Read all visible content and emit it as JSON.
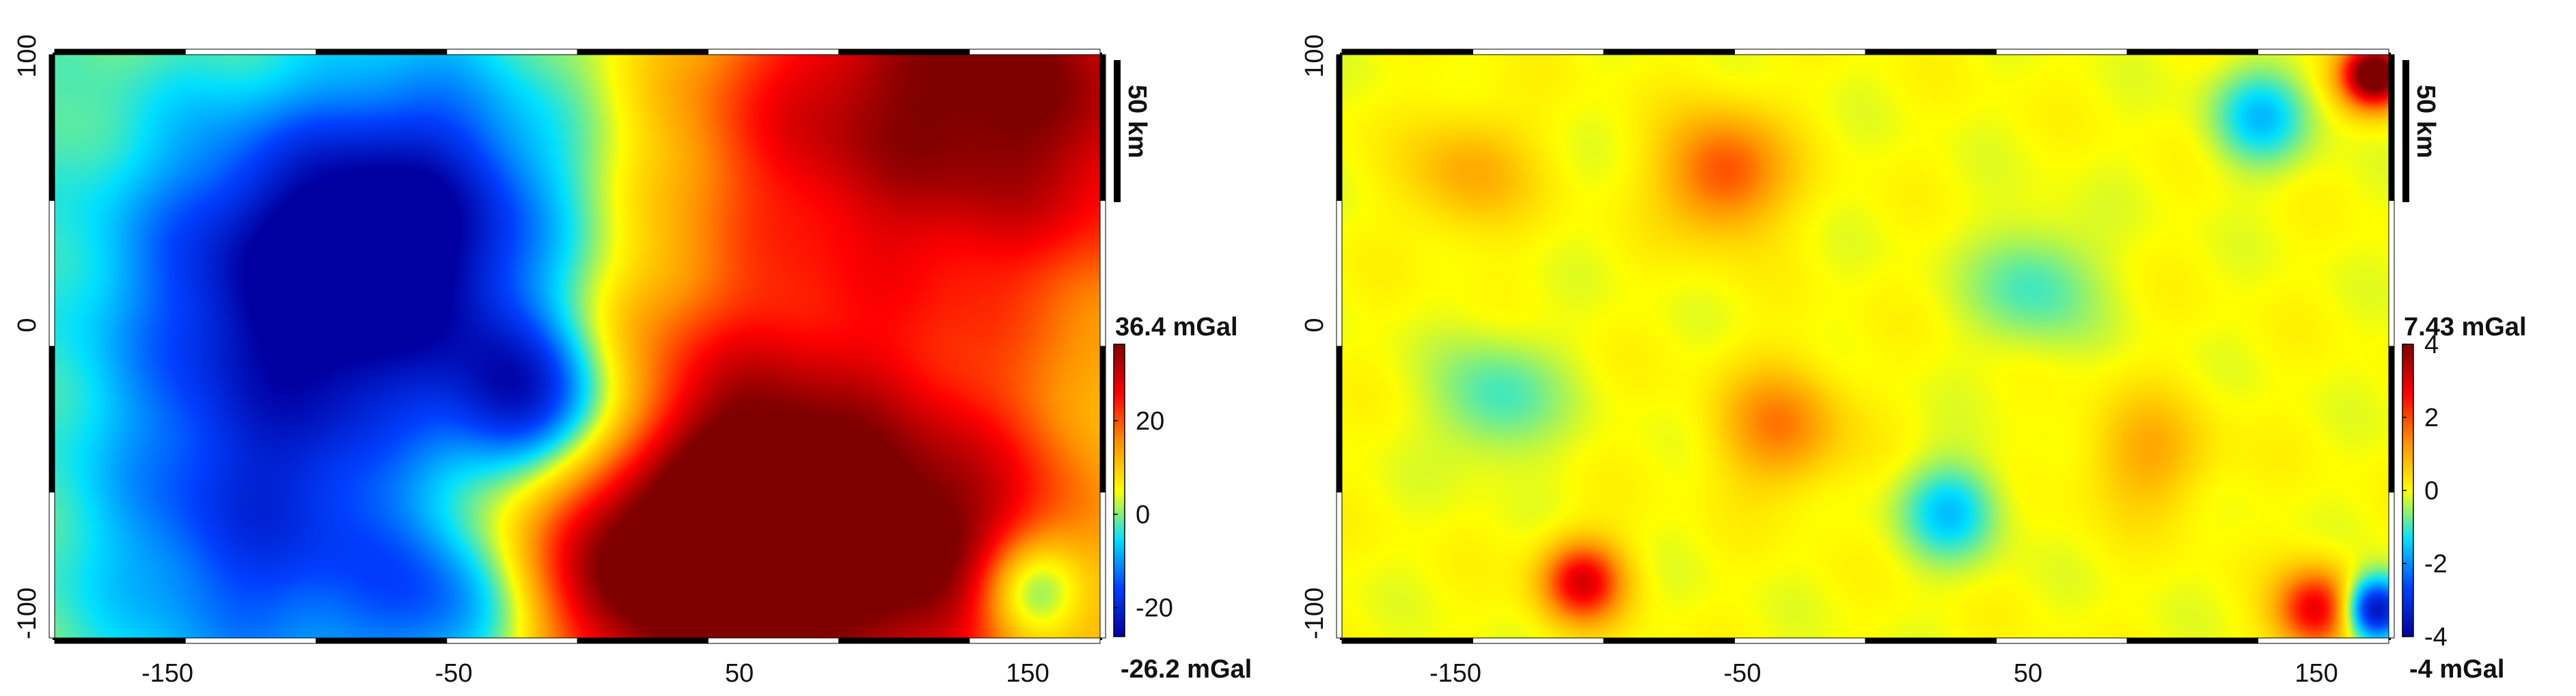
{
  "colors": {
    "colormap": [
      "#0000a0",
      "#0040ff",
      "#00e0ff",
      "#ffff00",
      "#ff9000",
      "#ff0000",
      "#800000"
    ],
    "frame": "#000000"
  },
  "chart_data": [
    {
      "type": "heatmap",
      "title": "",
      "xlabel": "",
      "ylabel": "",
      "xlim": [
        -185,
        185
      ],
      "ylim": [
        -105,
        102
      ],
      "xticks": [
        -150,
        -50,
        50,
        150
      ],
      "yticks": [
        -100,
        0,
        100
      ],
      "tick_labels_x": [
        "-150",
        "-50",
        "50",
        "150"
      ],
      "tick_labels_y": [
        "-100",
        "0",
        "100"
      ],
      "colorbar": {
        "min": -26.2,
        "max": 36.4,
        "ticks": [
          -20,
          0,
          20
        ],
        "tick_labels": [
          "-20",
          "0",
          "20"
        ],
        "max_label": "36.4 mGal",
        "min_label": "-26.2 mGal"
      },
      "scale_bar": {
        "label": "50 km",
        "length": 50
      },
      "anomalies": [
        {
          "x": 155,
          "y": 90,
          "v": 36,
          "r": 60
        },
        {
          "x": 70,
          "y": -60,
          "v": 30,
          "r": 55
        },
        {
          "x": 20,
          "y": -70,
          "v": 28,
          "r": 45
        },
        {
          "x": 140,
          "y": -80,
          "v": 22,
          "r": 40
        },
        {
          "x": 160,
          "y": -88,
          "v": -24,
          "r": 14
        },
        {
          "x": -20,
          "y": -20,
          "v": -26,
          "r": 20
        },
        {
          "x": 10,
          "y": -35,
          "v": -18,
          "r": 22
        },
        {
          "x": -100,
          "y": 20,
          "v": -20,
          "r": 45
        },
        {
          "x": -60,
          "y": 40,
          "v": -22,
          "r": 40
        },
        {
          "x": -110,
          "y": -70,
          "v": -16,
          "r": 40
        },
        {
          "x": -40,
          "y": -90,
          "v": -20,
          "r": 25
        },
        {
          "x": 70,
          "y": 80,
          "v": 12,
          "r": 40
        },
        {
          "x": -90,
          "y": 80,
          "v": 4,
          "r": 30
        }
      ]
    },
    {
      "type": "heatmap",
      "title": "",
      "xlabel": "",
      "ylabel": "",
      "xlim": [
        -185,
        185
      ],
      "ylim": [
        -105,
        102
      ],
      "xticks": [
        -150,
        -50,
        50,
        150
      ],
      "yticks": [
        -100,
        0,
        100
      ],
      "tick_labels_x": [
        "-150",
        "-50",
        "50",
        "150"
      ],
      "tick_labels_y": [
        "-100",
        "0",
        "100"
      ],
      "colorbar": {
        "min": -4,
        "max": 4,
        "ticks": [
          -4,
          -2,
          0,
          2,
          4
        ],
        "tick_labels": [
          "-4",
          "-2",
          "0",
          "2",
          "4"
        ],
        "max_label": "7.43 mGal",
        "min_label": "-4 mGal"
      },
      "scale_bar": {
        "label": "50 km",
        "length": 50
      },
      "anomalies": [
        {
          "x": 180,
          "y": 95,
          "v": 5,
          "r": 8
        },
        {
          "x": -100,
          "y": -85,
          "v": 3,
          "r": 10
        },
        {
          "x": 160,
          "y": -95,
          "v": 3,
          "r": 10
        },
        {
          "x": 180,
          "y": -95,
          "v": -4,
          "r": 8
        },
        {
          "x": -50,
          "y": 60,
          "v": 2,
          "r": 15
        },
        {
          "x": -30,
          "y": -30,
          "v": 1.5,
          "r": 15
        },
        {
          "x": 30,
          "y": -60,
          "v": -1.5,
          "r": 12
        },
        {
          "x": 60,
          "y": 20,
          "v": -1,
          "r": 15
        },
        {
          "x": -130,
          "y": -20,
          "v": -1,
          "r": 15
        },
        {
          "x": 100,
          "y": -40,
          "v": 1,
          "r": 15
        },
        {
          "x": 140,
          "y": 80,
          "v": -1.5,
          "r": 12
        },
        {
          "x": -140,
          "y": 60,
          "v": 1,
          "r": 15
        }
      ]
    }
  ]
}
